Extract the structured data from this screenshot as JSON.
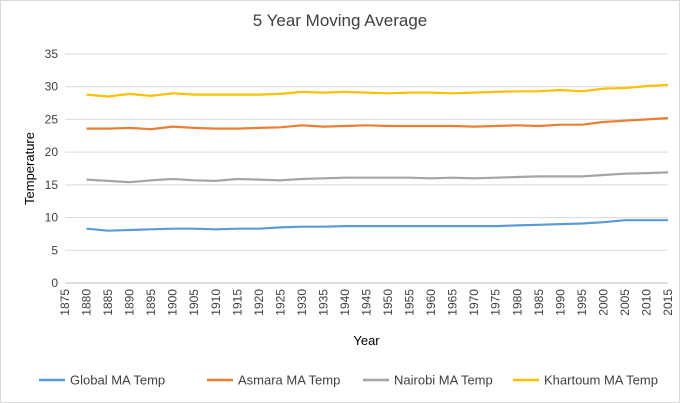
{
  "chart_data": {
    "type": "line",
    "title": "5 Year Moving Average",
    "xlabel": "Year",
    "ylabel": "Temperature",
    "xlim": [
      1875,
      2015
    ],
    "ylim": [
      0,
      35
    ],
    "yticks": [
      0,
      5,
      10,
      15,
      20,
      25,
      30,
      35
    ],
    "xticks": [
      1875,
      1880,
      1885,
      1890,
      1895,
      1900,
      1905,
      1910,
      1915,
      1920,
      1925,
      1930,
      1935,
      1940,
      1945,
      1950,
      1955,
      1960,
      1965,
      1970,
      1975,
      1980,
      1985,
      1990,
      1995,
      2000,
      2005,
      2010,
      2015
    ],
    "grid": "horizontal",
    "legend_position": "bottom",
    "series": [
      {
        "name": "Global MA Temp",
        "color": "#5B9BD5",
        "points": [
          [
            1880,
            8.3
          ],
          [
            1885,
            8.0
          ],
          [
            1890,
            8.1
          ],
          [
            1895,
            8.2
          ],
          [
            1900,
            8.3
          ],
          [
            1905,
            8.3
          ],
          [
            1910,
            8.2
          ],
          [
            1915,
            8.3
          ],
          [
            1920,
            8.3
          ],
          [
            1925,
            8.5
          ],
          [
            1930,
            8.6
          ],
          [
            1935,
            8.6
          ],
          [
            1940,
            8.7
          ],
          [
            1945,
            8.7
          ],
          [
            1950,
            8.7
          ],
          [
            1955,
            8.7
          ],
          [
            1960,
            8.7
          ],
          [
            1965,
            8.7
          ],
          [
            1970,
            8.7
          ],
          [
            1975,
            8.7
          ],
          [
            1980,
            8.8
          ],
          [
            1985,
            8.9
          ],
          [
            1990,
            9.0
          ],
          [
            1995,
            9.1
          ],
          [
            2000,
            9.3
          ],
          [
            2005,
            9.6
          ],
          [
            2010,
            9.6
          ],
          [
            2015,
            9.6
          ]
        ]
      },
      {
        "name": "Asmara MA Temp",
        "color": "#ED7D31",
        "points": [
          [
            1880,
            23.6
          ],
          [
            1885,
            23.6
          ],
          [
            1890,
            23.7
          ],
          [
            1895,
            23.5
          ],
          [
            1900,
            23.9
          ],
          [
            1905,
            23.7
          ],
          [
            1910,
            23.6
          ],
          [
            1915,
            23.6
          ],
          [
            1920,
            23.7
          ],
          [
            1925,
            23.8
          ],
          [
            1930,
            24.1
          ],
          [
            1935,
            23.9
          ],
          [
            1940,
            24.0
          ],
          [
            1945,
            24.1
          ],
          [
            1950,
            24.0
          ],
          [
            1955,
            24.0
          ],
          [
            1960,
            24.0
          ],
          [
            1965,
            24.0
          ],
          [
            1970,
            23.9
          ],
          [
            1975,
            24.0
          ],
          [
            1980,
            24.1
          ],
          [
            1985,
            24.0
          ],
          [
            1990,
            24.2
          ],
          [
            1995,
            24.2
          ],
          [
            2000,
            24.6
          ],
          [
            2005,
            24.8
          ],
          [
            2010,
            25.0
          ],
          [
            2015,
            25.2
          ]
        ]
      },
      {
        "name": "Nairobi MA Temp",
        "color": "#A5A5A5",
        "points": [
          [
            1880,
            15.8
          ],
          [
            1885,
            15.6
          ],
          [
            1890,
            15.4
          ],
          [
            1895,
            15.7
          ],
          [
            1900,
            15.9
          ],
          [
            1905,
            15.7
          ],
          [
            1910,
            15.6
          ],
          [
            1915,
            15.9
          ],
          [
            1920,
            15.8
          ],
          [
            1925,
            15.7
          ],
          [
            1930,
            15.9
          ],
          [
            1935,
            16.0
          ],
          [
            1940,
            16.1
          ],
          [
            1945,
            16.1
          ],
          [
            1950,
            16.1
          ],
          [
            1955,
            16.1
          ],
          [
            1960,
            16.0
          ],
          [
            1965,
            16.1
          ],
          [
            1970,
            16.0
          ],
          [
            1975,
            16.1
          ],
          [
            1980,
            16.2
          ],
          [
            1985,
            16.3
          ],
          [
            1990,
            16.3
          ],
          [
            1995,
            16.3
          ],
          [
            2000,
            16.5
          ],
          [
            2005,
            16.7
          ],
          [
            2010,
            16.8
          ],
          [
            2015,
            16.9
          ]
        ]
      },
      {
        "name": "Khartoum MA Temp",
        "color": "#FFC000",
        "points": [
          [
            1880,
            28.8
          ],
          [
            1885,
            28.5
          ],
          [
            1890,
            28.9
          ],
          [
            1895,
            28.6
          ],
          [
            1900,
            29.0
          ],
          [
            1905,
            28.8
          ],
          [
            1910,
            28.8
          ],
          [
            1915,
            28.8
          ],
          [
            1920,
            28.8
          ],
          [
            1925,
            28.9
          ],
          [
            1930,
            29.2
          ],
          [
            1935,
            29.1
          ],
          [
            1940,
            29.2
          ],
          [
            1945,
            29.1
          ],
          [
            1950,
            29.0
          ],
          [
            1955,
            29.1
          ],
          [
            1960,
            29.1
          ],
          [
            1965,
            29.0
          ],
          [
            1970,
            29.1
          ],
          [
            1975,
            29.2
          ],
          [
            1980,
            29.3
          ],
          [
            1985,
            29.3
          ],
          [
            1990,
            29.5
          ],
          [
            1995,
            29.3
          ],
          [
            2000,
            29.7
          ],
          [
            2005,
            29.8
          ],
          [
            2010,
            30.1
          ],
          [
            2015,
            30.3
          ]
        ]
      }
    ]
  }
}
